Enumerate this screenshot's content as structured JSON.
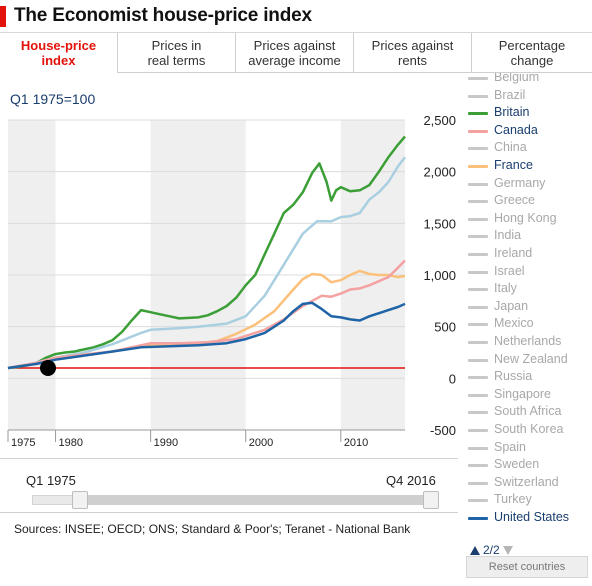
{
  "header": {
    "title": "The Economist house-price index"
  },
  "tabs": [
    {
      "label": "House-price\nindex",
      "active": true
    },
    {
      "label": "Prices in\nreal terms",
      "active": false
    },
    {
      "label": "Prices against\naverage income",
      "active": false
    },
    {
      "label": "Prices against\nrents",
      "active": false
    },
    {
      "label": "Percentage\nchange",
      "active": false
    }
  ],
  "chart_top_label": "Q1 1975=100",
  "chart_data": {
    "type": "line",
    "title": "",
    "xlabel": "",
    "ylabel": "Q1 1975=100",
    "xlim": [
      1975,
      2016.75
    ],
    "ylim": [
      -500,
      2500
    ],
    "yticks": [
      "2,500",
      "2,000",
      "1,500",
      "1,000",
      "500",
      "0",
      "-500"
    ],
    "ytick_values": [
      2500,
      2000,
      1500,
      1000,
      500,
      0,
      -500
    ],
    "xticks": [
      "1975",
      "1980",
      "1990",
      "2000",
      "2010"
    ],
    "xtick_values": [
      1975,
      1980,
      1990,
      2000,
      2010
    ],
    "baseline": {
      "value": 100,
      "color": "#e3120b"
    },
    "start_marker": {
      "x": 1975,
      "y": 100
    },
    "series": [
      {
        "name": "Britain",
        "color": "#3c9e36",
        "x": [
          1975,
          1976,
          1977,
          1978,
          1979,
          1980,
          1981,
          1982,
          1983,
          1984,
          1985,
          1986,
          1987,
          1988,
          1989,
          1990,
          1991,
          1992,
          1993,
          1994,
          1995,
          1996,
          1997,
          1998,
          1999,
          2000,
          2001,
          2002,
          2003,
          2004,
          2005,
          2006,
          2007,
          2007.75,
          2008.5,
          2009,
          2009.5,
          2010,
          2011,
          2012,
          2013,
          2014,
          2015,
          2016,
          2016.75
        ],
        "y": [
          100,
          110,
          125,
          150,
          200,
          235,
          250,
          260,
          280,
          300,
          330,
          370,
          450,
          560,
          660,
          640,
          620,
          600,
          580,
          585,
          590,
          610,
          650,
          700,
          780,
          900,
          1000,
          1200,
          1400,
          1600,
          1680,
          1800,
          1990,
          2080,
          1900,
          1720,
          1820,
          1850,
          1810,
          1820,
          1870,
          2000,
          2140,
          2260,
          2340
        ]
      },
      {
        "name": "",
        "color": "#a9cfe0",
        "x": [
          1975,
          1977,
          1980,
          1983,
          1986,
          1989,
          1990,
          1992,
          1995,
          1998,
          2000,
          2002,
          2004,
          2006,
          2007.5,
          2009,
          2010,
          2011,
          2012,
          2013,
          2014,
          2015,
          2016,
          2016.75
        ],
        "y": [
          100,
          130,
          200,
          250,
          330,
          440,
          470,
          480,
          500,
          530,
          600,
          800,
          1100,
          1400,
          1520,
          1520,
          1560,
          1570,
          1600,
          1730,
          1800,
          1900,
          2050,
          2140
        ]
      },
      {
        "name": "",
        "color": "#fbc07a",
        "x": [
          1975,
          1978,
          1980,
          1983,
          1986,
          1989,
          1992,
          1995,
          1997,
          1999,
          2001,
          2003,
          2005,
          2006,
          2007,
          2008,
          2009,
          2010,
          2011,
          2012,
          2013,
          2014,
          2015,
          2016,
          2016.75
        ],
        "y": [
          100,
          140,
          190,
          230,
          260,
          320,
          330,
          340,
          360,
          430,
          520,
          650,
          860,
          960,
          1010,
          1000,
          930,
          950,
          1000,
          1040,
          1010,
          1000,
          1000,
          980,
          990
        ]
      },
      {
        "name": "",
        "color": "#f4a1a1",
        "x": [
          1975,
          1978,
          1980,
          1983,
          1986,
          1988,
          1990,
          1993,
          1996,
          1999,
          2002,
          2004,
          2006,
          2008,
          2009,
          2010,
          2011,
          2012,
          2013,
          2014,
          2015,
          2016,
          2016.75
        ],
        "y": [
          100,
          150,
          200,
          230,
          260,
          300,
          340,
          340,
          350,
          380,
          470,
          570,
          700,
          800,
          790,
          820,
          860,
          870,
          900,
          940,
          980,
          1070,
          1140
        ]
      },
      {
        "name": "United States",
        "color": "#1f64a6",
        "x": [
          1975,
          1978,
          1980,
          1983,
          1986,
          1989,
          1992,
          1995,
          1998,
          2000,
          2002,
          2004,
          2005,
          2006,
          2007,
          2008,
          2009,
          2010,
          2011,
          2012,
          2013,
          2014,
          2015,
          2016,
          2016.75
        ],
        "y": [
          100,
          140,
          180,
          220,
          260,
          300,
          310,
          320,
          340,
          380,
          440,
          560,
          650,
          720,
          730,
          670,
          600,
          590,
          570,
          560,
          600,
          630,
          660,
          690,
          720
        ]
      }
    ]
  },
  "slider": {
    "start_label": "Q1 1975",
    "end_label": "Q4 2016"
  },
  "sources": "Sources: INSEE; OECD; ONS; Standard & Poor's; Teranet - National Bank",
  "legend": {
    "items": [
      {
        "label": "Belgium",
        "color": "#c8c8c8",
        "on": false
      },
      {
        "label": "Brazil",
        "color": "#c8c8c8",
        "on": false
      },
      {
        "label": "Britain",
        "color": "#3c9e36",
        "on": true
      },
      {
        "label": "Canada",
        "color": "#f4a1a1",
        "on": true
      },
      {
        "label": "China",
        "color": "#c8c8c8",
        "on": false
      },
      {
        "label": "France",
        "color": "#fbc07a",
        "on": true
      },
      {
        "label": "Germany",
        "color": "#c8c8c8",
        "on": false
      },
      {
        "label": "Greece",
        "color": "#c8c8c8",
        "on": false
      },
      {
        "label": "Hong Kong",
        "color": "#c8c8c8",
        "on": false
      },
      {
        "label": "India",
        "color": "#c8c8c8",
        "on": false
      },
      {
        "label": "Ireland",
        "color": "#c8c8c8",
        "on": false
      },
      {
        "label": "Israel",
        "color": "#c8c8c8",
        "on": false
      },
      {
        "label": "Italy",
        "color": "#c8c8c8",
        "on": false
      },
      {
        "label": "Japan",
        "color": "#c8c8c8",
        "on": false
      },
      {
        "label": "Mexico",
        "color": "#c8c8c8",
        "on": false
      },
      {
        "label": "Netherlands",
        "color": "#c8c8c8",
        "on": false
      },
      {
        "label": "New Zealand",
        "color": "#c8c8c8",
        "on": false
      },
      {
        "label": "Russia",
        "color": "#c8c8c8",
        "on": false
      },
      {
        "label": "Singapore",
        "color": "#c8c8c8",
        "on": false
      },
      {
        "label": "South Africa",
        "color": "#c8c8c8",
        "on": false
      },
      {
        "label": "South Korea",
        "color": "#c8c8c8",
        "on": false
      },
      {
        "label": "Spain",
        "color": "#c8c8c8",
        "on": false
      },
      {
        "label": "Sweden",
        "color": "#c8c8c8",
        "on": false
      },
      {
        "label": "Switzerland",
        "color": "#c8c8c8",
        "on": false
      },
      {
        "label": "Turkey",
        "color": "#c8c8c8",
        "on": false
      },
      {
        "label": "United States",
        "color": "#1f64a6",
        "on": true
      }
    ]
  },
  "pager": {
    "label": "2/2"
  },
  "reset_button": {
    "label": "Reset countries"
  }
}
